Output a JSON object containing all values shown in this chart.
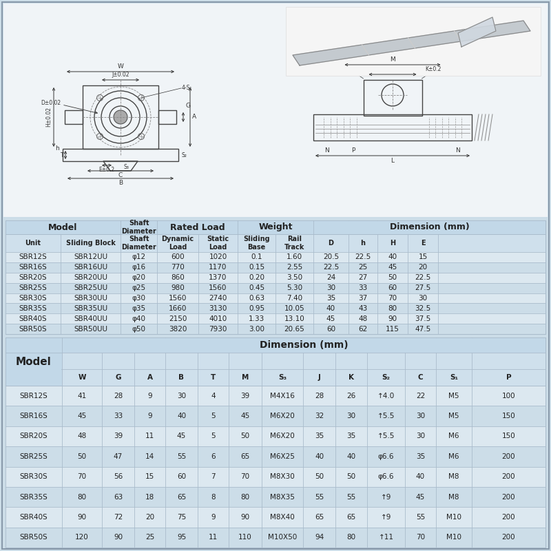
{
  "bg_color": "#ccdde8",
  "diagram_bg": "#eef3f7",
  "table_bg": "#dce8f0",
  "header_bg": "#b8d0e0",
  "row_alt": "#ccdde8",
  "text_color": "#222222",
  "grid_color": "#aabccc",
  "table1_data": [
    [
      "SBR12S",
      "SBR12UU",
      "φ12",
      "600",
      "1020",
      "0.1",
      "1.60",
      "20.5",
      "22.5",
      "40",
      "15"
    ],
    [
      "SBR16S",
      "SBR16UU",
      "φ16",
      "770",
      "1170",
      "0.15",
      "2.55",
      "22.5",
      "25",
      "45",
      "20"
    ],
    [
      "SBR20S",
      "SBR20UU",
      "φ20",
      "860",
      "1370",
      "0.20",
      "3.50",
      "24",
      "27",
      "50",
      "22.5"
    ],
    [
      "SBR25S",
      "SBR25UU",
      "φ25",
      "980",
      "1560",
      "0.45",
      "5.30",
      "30",
      "33",
      "60",
      "27.5"
    ],
    [
      "SBR30S",
      "SBR30UU",
      "φ30",
      "1560",
      "2740",
      "0.63",
      "7.40",
      "35",
      "37",
      "70",
      "30"
    ],
    [
      "SBR35S",
      "SBR35UU",
      "φ35",
      "1660",
      "3130",
      "0.95",
      "10.05",
      "40",
      "43",
      "80",
      "32.5"
    ],
    [
      "SBR40S",
      "SBR40UU",
      "φ40",
      "2150",
      "4010",
      "1.33",
      "13.10",
      "45",
      "48",
      "90",
      "37.5"
    ],
    [
      "SBR50S",
      "SBR50UU",
      "φ50",
      "3820",
      "7930",
      "3.00",
      "20.65",
      "60",
      "62",
      "115",
      "47.5"
    ]
  ],
  "table2_headers": [
    "W",
    "G",
    "A",
    "B",
    "T",
    "M",
    "S₃",
    "J",
    "K",
    "S₂",
    "C",
    "S₁",
    "P"
  ],
  "table2_data": [
    [
      "SBR12S",
      "41",
      "28",
      "9",
      "30",
      "4",
      "39",
      "M4X16",
      "28",
      "26",
      "↑4.0",
      "22",
      "M5",
      "100"
    ],
    [
      "SBR16S",
      "45",
      "33",
      "9",
      "40",
      "5",
      "45",
      "M6X20",
      "32",
      "30",
      "↑5.5",
      "30",
      "M5",
      "150"
    ],
    [
      "SBR20S",
      "48",
      "39",
      "11",
      "45",
      "5",
      "50",
      "M6X20",
      "35",
      "35",
      "↑5.5",
      "30",
      "M6",
      "150"
    ],
    [
      "SBR25S",
      "50",
      "47",
      "14",
      "55",
      "6",
      "65",
      "M6X25",
      "40",
      "40",
      "φ6.6",
      "35",
      "M6",
      "200"
    ],
    [
      "SBR30S",
      "70",
      "56",
      "15",
      "60",
      "7",
      "70",
      "M8X30",
      "50",
      "50",
      "φ6.6",
      "40",
      "M8",
      "200"
    ],
    [
      "SBR35S",
      "80",
      "63",
      "18",
      "65",
      "8",
      "80",
      "M8X35",
      "55",
      "55",
      "↑9",
      "45",
      "M8",
      "200"
    ],
    [
      "SBR40S",
      "90",
      "72",
      "20",
      "75",
      "9",
      "90",
      "M8X40",
      "65",
      "65",
      "↑9",
      "55",
      "M10",
      "200"
    ],
    [
      "SBR50S",
      "120",
      "90",
      "25",
      "95",
      "11",
      "110",
      "M10X50",
      "94",
      "80",
      "↑11",
      "70",
      "M10",
      "200"
    ]
  ]
}
